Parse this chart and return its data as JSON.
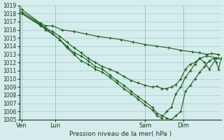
{
  "title": "Pression niveau de la mer( hPa )",
  "bg_color": "#d4ecec",
  "grid_color": "#a8cccc",
  "line_color": "#1a5c1a",
  "marker_color": "#1a5c1a",
  "ylim": [
    1005,
    1019
  ],
  "yticks": [
    1005,
    1006,
    1007,
    1008,
    1009,
    1010,
    1011,
    1012,
    1013,
    1014,
    1015,
    1016,
    1017,
    1018,
    1019
  ],
  "xtick_labels": [
    "Ven",
    "Lun",
    "Sam",
    "Dim"
  ],
  "xtick_positions": [
    0,
    14,
    52,
    68
  ],
  "xlim": [
    -1,
    84
  ],
  "series": [
    [
      1018.5,
      1016.8,
      1016.5,
      1016.5,
      1016.0,
      1015.8,
      1015.5,
      1015.2,
      1015.0,
      1014.8,
      1014.5,
      1014.2,
      1014.0,
      1013.8,
      1013.5,
      1013.3,
      1013.2,
      1013.0,
      1013.1,
      1013.0
    ],
    [
      1018.2,
      1016.7,
      1016.2,
      1015.8,
      1015.2,
      1014.5,
      1013.8,
      1013.2,
      1012.5,
      1012.0,
      1011.5,
      1011.2,
      1010.8,
      1010.3,
      1009.8,
      1009.5,
      1009.2,
      1009.0,
      1009.1,
      1008.8,
      1008.8,
      1009.0,
      1009.3,
      1010.0,
      1011.2,
      1011.8,
      1012.0,
      1012.5,
      1012.8,
      1012.5
    ],
    [
      1018.0,
      1016.5,
      1016.2,
      1015.5,
      1014.8,
      1014.0,
      1013.2,
      1012.8,
      1012.2,
      1011.5,
      1011.2,
      1010.5,
      1009.8,
      1009.2,
      1008.5,
      1007.8,
      1007.2,
      1006.5,
      1005.8,
      1005.5,
      1005.2,
      1005.0,
      1005.5,
      1006.0,
      1008.5,
      1009.2,
      1010.0,
      1010.8,
      1011.5,
      1012.2,
      1012.5,
      1012.0,
      1011.2,
      1012.5
    ],
    [
      1018.0,
      1016.6,
      1016.0,
      1015.5,
      1014.8,
      1013.8,
      1013.0,
      1012.2,
      1011.8,
      1011.2,
      1010.8,
      1010.2,
      1009.5,
      1008.8,
      1008.2,
      1007.5,
      1006.8,
      1006.2,
      1005.5,
      1005.2,
      1006.0,
      1006.5,
      1008.2,
      1009.0,
      1010.2,
      1011.0,
      1011.8,
      1012.5,
      1012.0,
      1011.2,
      1012.5
    ]
  ],
  "series_x": [
    [
      0,
      8,
      10,
      13,
      17,
      22,
      27,
      32,
      37,
      42,
      47,
      52,
      57,
      62,
      67,
      72,
      75,
      78,
      80,
      83
    ],
    [
      0,
      8,
      10,
      13,
      16,
      19,
      22,
      25,
      28,
      31,
      34,
      37,
      40,
      43,
      46,
      49,
      52,
      55,
      57,
      59,
      61,
      63,
      65,
      67,
      69,
      71,
      73,
      75,
      78,
      83
    ],
    [
      0,
      8,
      10,
      13,
      16,
      19,
      22,
      25,
      28,
      31,
      34,
      37,
      40,
      43,
      46,
      49,
      52,
      55,
      57,
      59,
      61,
      63,
      65,
      67,
      69,
      71,
      73,
      75,
      77,
      79,
      81,
      82,
      83,
      84
    ],
    [
      0,
      8,
      10,
      13,
      16,
      19,
      22,
      25,
      28,
      31,
      34,
      37,
      40,
      43,
      46,
      49,
      52,
      55,
      57,
      59,
      61,
      63,
      65,
      67,
      69,
      71,
      73,
      75,
      77,
      79,
      82
    ]
  ]
}
